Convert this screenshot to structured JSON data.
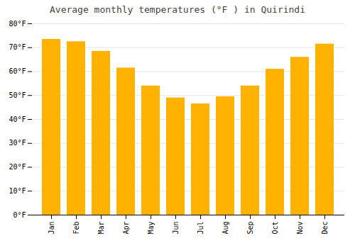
{
  "chart_data": {
    "type": "bar",
    "title": "Average monthly temperatures (°F ) in Quirindi",
    "categories": [
      "Jan",
      "Feb",
      "Mar",
      "Apr",
      "May",
      "Jun",
      "Jul",
      "Aug",
      "Sep",
      "Oct",
      "Nov",
      "Dec"
    ],
    "values": [
      73.5,
      72.5,
      68.5,
      61.5,
      54.0,
      49.0,
      46.5,
      49.5,
      54.0,
      61.0,
      66.0,
      71.5
    ],
    "color": "#FFB300",
    "ylim": [
      0,
      80
    ],
    "yticks": [
      {
        "value": 0,
        "label": "0°F"
      },
      {
        "value": 10,
        "label": "10°F"
      },
      {
        "value": 20,
        "label": "20°F"
      },
      {
        "value": 30,
        "label": "30°F"
      },
      {
        "value": 40,
        "label": "40°F"
      },
      {
        "value": 50,
        "label": "50°F"
      },
      {
        "value": 60,
        "label": "60°F"
      },
      {
        "value": 70,
        "label": "70°F"
      },
      {
        "value": 80,
        "label": "80°F"
      }
    ],
    "grid": true
  }
}
